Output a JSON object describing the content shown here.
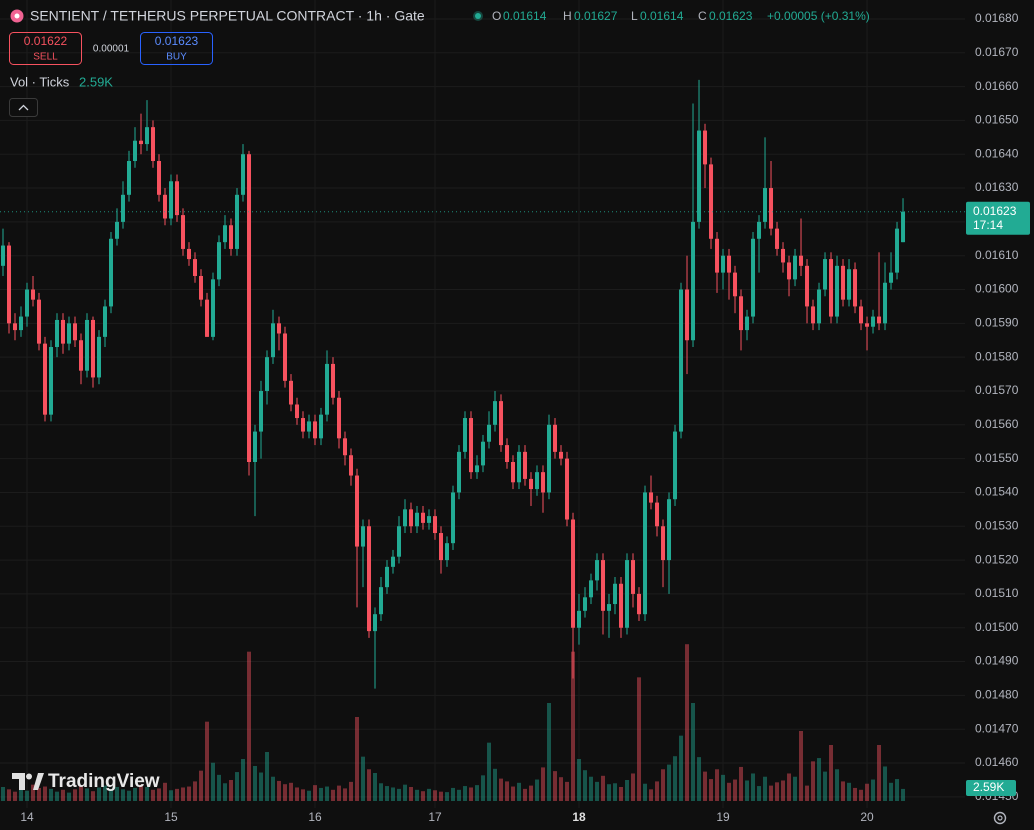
{
  "chart_data": {
    "type": "candlestick",
    "title": "SENTIENT / TETHERUS PERPETUAL CONTRACT · 1h · Gate",
    "ohlc_labels": [
      "O",
      "H",
      "L",
      "C"
    ],
    "change": "+0.00005 (+0.31%)",
    "trade": {
      "sell": 0.01622,
      "sell_label": "SELL",
      "spread": 1e-05,
      "buy": 0.01623,
      "buy_label": "BUY"
    },
    "indicator": "Vol · Ticks",
    "volume_label": "2.59K",
    "countdown": "17:14",
    "brand": "TradingView",
    "up_color": "#22ab94",
    "down_color": "#f7525f",
    "grid": true,
    "last_price_line": true,
    "xlim": [
      -0.5,
      160.33
    ],
    "xticks": [
      {
        "value": 4,
        "label": "14"
      },
      {
        "value": 28,
        "label": "15"
      },
      {
        "value": 52,
        "label": "16"
      },
      {
        "value": 72,
        "label": "17"
      },
      {
        "value": 96,
        "label": "18"
      },
      {
        "value": 120,
        "label": "19"
      },
      {
        "value": 144,
        "label": "20"
      }
    ],
    "ylim": [
      0.014467,
      0.016856
    ],
    "yticks": [
      {
        "value": 0.0145,
        "label": "0.01450"
      },
      {
        "value": 0.0146,
        "label": "0.01460"
      },
      {
        "value": 0.0147,
        "label": "0.01470"
      },
      {
        "value": 0.0148,
        "label": "0.01480"
      },
      {
        "value": 0.0149,
        "label": "0.01490"
      },
      {
        "value": 0.015,
        "label": "0.01500"
      },
      {
        "value": 0.0151,
        "label": "0.01510"
      },
      {
        "value": 0.0152,
        "label": "0.01520"
      },
      {
        "value": 0.0153,
        "label": "0.01530"
      },
      {
        "value": 0.0154,
        "label": "0.01540"
      },
      {
        "value": 0.0155,
        "label": "0.01550"
      },
      {
        "value": 0.0156,
        "label": "0.01560"
      },
      {
        "value": 0.0157,
        "label": "0.01570"
      },
      {
        "value": 0.0158,
        "label": "0.01580"
      },
      {
        "value": 0.0159,
        "label": "0.01590"
      },
      {
        "value": 0.016,
        "label": "0.01600"
      },
      {
        "value": 0.0161,
        "label": "0.01610"
      },
      {
        "value": 0.0162,
        "label": "0.01620"
      },
      {
        "value": 0.0163,
        "label": "0.01630"
      },
      {
        "value": 0.0164,
        "label": "0.01640"
      },
      {
        "value": 0.0165,
        "label": "0.01650"
      },
      {
        "value": 0.0166,
        "label": "0.01660"
      },
      {
        "value": 0.0167,
        "label": "0.01670"
      },
      {
        "value": 0.0168,
        "label": "0.01680"
      }
    ],
    "y2lim": [
      0,
      45000
    ],
    "x": [
      0,
      1,
      2,
      3,
      4,
      5,
      6,
      7,
      8,
      9,
      10,
      11,
      12,
      13,
      14,
      15,
      16,
      17,
      18,
      19,
      20,
      21,
      22,
      23,
      24,
      25,
      26,
      27,
      28,
      29,
      30,
      31,
      32,
      33,
      34,
      35,
      36,
      37,
      38,
      39,
      40,
      41,
      42,
      43,
      44,
      45,
      46,
      47,
      48,
      49,
      50,
      51,
      52,
      53,
      54,
      55,
      56,
      57,
      58,
      59,
      60,
      61,
      62,
      63,
      64,
      65,
      66,
      67,
      68,
      69,
      70,
      71,
      72,
      73,
      74,
      75,
      76,
      77,
      78,
      79,
      80,
      81,
      82,
      83,
      84,
      85,
      86,
      87,
      88,
      89,
      90,
      91,
      92,
      93,
      94,
      95,
      96,
      97,
      98,
      99,
      100,
      101,
      102,
      103,
      104,
      105,
      106,
      107,
      108,
      109,
      110,
      111,
      112,
      113,
      114,
      115,
      116,
      117,
      118,
      119,
      120,
      121,
      122,
      123,
      124,
      125,
      126,
      127,
      128,
      129,
      130,
      131,
      132,
      133,
      134,
      135,
      136,
      137,
      138,
      139,
      140,
      141,
      142,
      143,
      144,
      145,
      146,
      147,
      148,
      149,
      150
    ],
    "open": [
      0.01607,
      0.01613,
      0.0159,
      0.01588,
      0.01592,
      0.016,
      0.01597,
      0.01584,
      0.01563,
      0.01583,
      0.01591,
      0.01584,
      0.0159,
      0.01585,
      0.01576,
      0.01591,
      0.01574,
      0.01586,
      0.01595,
      0.01615,
      0.0162,
      0.01628,
      0.01638,
      0.01644,
      0.01643,
      0.01648,
      0.01638,
      0.01628,
      0.01621,
      0.01632,
      0.01622,
      0.01612,
      0.01609,
      0.01604,
      0.01597,
      0.01586,
      0.01603,
      0.01614,
      0.01619,
      0.01612,
      0.01628,
      0.0164,
      0.01549,
      0.01558,
      0.0157,
      0.0158,
      0.0159,
      0.01587,
      0.01573,
      0.01566,
      0.01562,
      0.01558,
      0.01561,
      0.01556,
      0.01563,
      0.01578,
      0.01568,
      0.01556,
      0.01551,
      0.01545,
      0.01524,
      0.0153,
      0.01499,
      0.01504,
      0.01512,
      0.01518,
      0.01521,
      0.0153,
      0.01535,
      0.0153,
      0.01534,
      0.01531,
      0.01533,
      0.01528,
      0.0152,
      0.01525,
      0.0154,
      0.01552,
      0.01562,
      0.01546,
      0.01548,
      0.01555,
      0.0156,
      0.01567,
      0.01554,
      0.01549,
      0.01543,
      0.01552,
      0.01544,
      0.01541,
      0.01546,
      0.0154,
      0.0156,
      0.01552,
      0.0155,
      0.01532,
      0.015,
      0.01505,
      0.01509,
      0.01514,
      0.0152,
      0.01505,
      0.01507,
      0.01513,
      0.015,
      0.0152,
      0.0151,
      0.01504,
      0.0154,
      0.01537,
      0.0153,
      0.0152,
      0.01538,
      0.01558,
      0.016,
      0.01585,
      0.0162,
      0.01647,
      0.01637,
      0.01615,
      0.01605,
      0.0161,
      0.01605,
      0.01598,
      0.01588,
      0.01592,
      0.01615,
      0.0162,
      0.0163,
      0.01618,
      0.01612,
      0.01608,
      0.01603,
      0.0161,
      0.01607,
      0.01595,
      0.0159,
      0.016,
      0.01609,
      0.01592,
      0.01607,
      0.01597,
      0.01606,
      0.01595,
      0.0159,
      0.01589,
      0.01592,
      0.0159,
      0.01602,
      0.01605,
      0.01614
    ],
    "high": [
      0.01618,
      0.01614,
      0.01593,
      0.01595,
      0.01602,
      0.01604,
      0.01599,
      0.01586,
      0.01585,
      0.01593,
      0.01593,
      0.01592,
      0.01592,
      0.01587,
      0.01593,
      0.01592,
      0.01588,
      0.01597,
      0.01617,
      0.01624,
      0.01632,
      0.01641,
      0.01648,
      0.01652,
      0.01656,
      0.0165,
      0.0164,
      0.0163,
      0.01634,
      0.01634,
      0.01624,
      0.01614,
      0.01611,
      0.01606,
      0.01599,
      0.01605,
      0.01616,
      0.01622,
      0.01621,
      0.0163,
      0.01643,
      0.01641,
      0.0156,
      0.01573,
      0.01582,
      0.01594,
      0.01592,
      0.01589,
      0.01575,
      0.01568,
      0.01564,
      0.01563,
      0.01563,
      0.01565,
      0.01582,
      0.0158,
      0.0157,
      0.01558,
      0.01553,
      0.01547,
      0.01532,
      0.01532,
      0.01506,
      0.01515,
      0.0152,
      0.01523,
      0.01533,
      0.01538,
      0.01537,
      0.01536,
      0.01536,
      0.01535,
      0.01535,
      0.0153,
      0.01527,
      0.01542,
      0.01554,
      0.01564,
      0.01564,
      0.01551,
      0.01557,
      0.01564,
      0.0157,
      0.01569,
      0.01556,
      0.01551,
      0.01554,
      0.01554,
      0.01546,
      0.01548,
      0.01548,
      0.01563,
      0.01562,
      0.01554,
      0.01552,
      0.01534,
      0.0151,
      0.01512,
      0.01516,
      0.01522,
      0.01522,
      0.0151,
      0.01515,
      0.01515,
      0.01522,
      0.01522,
      0.01512,
      0.01542,
      0.01545,
      0.01539,
      0.01532,
      0.0154,
      0.0156,
      0.01602,
      0.0161,
      0.01655,
      0.01662,
      0.01649,
      0.01639,
      0.01617,
      0.01612,
      0.01612,
      0.01607,
      0.016,
      0.01594,
      0.01617,
      0.01622,
      0.01645,
      0.01638,
      0.0162,
      0.01614,
      0.0161,
      0.01612,
      0.01621,
      0.01609,
      0.01597,
      0.01602,
      0.01611,
      0.01611,
      0.0161,
      0.01609,
      0.01609,
      0.01608,
      0.01597,
      0.01592,
      0.01594,
      0.01611,
      0.01608,
      0.01611,
      0.0162,
      0.01627
    ],
    "low": [
      0.01604,
      0.01587,
      0.01585,
      0.01586,
      0.01589,
      0.01595,
      0.01582,
      0.01561,
      0.01561,
      0.0158,
      0.01581,
      0.01582,
      0.01583,
      0.01572,
      0.01574,
      0.01571,
      0.01572,
      0.01583,
      0.01593,
      0.01613,
      0.01618,
      0.01626,
      0.01636,
      0.0164,
      0.01641,
      0.01636,
      0.01626,
      0.01619,
      0.01619,
      0.0162,
      0.0161,
      0.01607,
      0.01602,
      0.01595,
      0.01586,
      0.01585,
      0.01601,
      0.01612,
      0.0161,
      0.0161,
      0.01626,
      0.01545,
      0.01533,
      0.0155,
      0.01566,
      0.01578,
      0.01582,
      0.01571,
      0.01564,
      0.0156,
      0.01556,
      0.01556,
      0.01554,
      0.01554,
      0.01561,
      0.01566,
      0.01553,
      0.01548,
      0.01542,
      0.01506,
      0.01512,
      0.01497,
      0.01482,
      0.01502,
      0.0151,
      0.01516,
      0.01519,
      0.01528,
      0.01528,
      0.01528,
      0.01529,
      0.01529,
      0.01526,
      0.01516,
      0.01518,
      0.01523,
      0.01538,
      0.0155,
      0.01544,
      0.01544,
      0.01546,
      0.01553,
      0.01558,
      0.01552,
      0.01547,
      0.01541,
      0.01541,
      0.01542,
      0.01536,
      0.01539,
      0.01534,
      0.01538,
      0.0155,
      0.01548,
      0.0153,
      0.01485,
      0.01495,
      0.01503,
      0.01507,
      0.01511,
      0.01498,
      0.01497,
      0.01504,
      0.01497,
      0.01498,
      0.01506,
      0.01502,
      0.01502,
      0.01535,
      0.01527,
      0.01512,
      0.0151,
      0.01536,
      0.01556,
      0.01575,
      0.01583,
      0.01618,
      0.0163,
      0.01612,
      0.01599,
      0.016,
      0.01597,
      0.01593,
      0.01582,
      0.01585,
      0.0159,
      0.01605,
      0.01618,
      0.01616,
      0.0161,
      0.01605,
      0.01598,
      0.01601,
      0.01604,
      0.0159,
      0.01588,
      0.01588,
      0.01598,
      0.0159,
      0.0159,
      0.01595,
      0.01595,
      0.01593,
      0.01588,
      0.01582,
      0.01587,
      0.01588,
      0.01588,
      0.016,
      0.01603,
      0.01614
    ],
    "close": [
      0.01613,
      0.0159,
      0.01588,
      0.01592,
      0.016,
      0.01597,
      0.01584,
      0.01563,
      0.01583,
      0.01591,
      0.01584,
      0.0159,
      0.01585,
      0.01576,
      0.01591,
      0.01574,
      0.01586,
      0.01595,
      0.01615,
      0.0162,
      0.01628,
      0.01638,
      0.01644,
      0.01643,
      0.01648,
      0.01638,
      0.01628,
      0.01621,
      0.01632,
      0.01622,
      0.01612,
      0.01609,
      0.01604,
      0.01597,
      0.01586,
      0.01603,
      0.01614,
      0.01619,
      0.01612,
      0.01628,
      0.0164,
      0.01549,
      0.01558,
      0.0157,
      0.0158,
      0.0159,
      0.01587,
      0.01573,
      0.01566,
      0.01562,
      0.01558,
      0.01561,
      0.01556,
      0.01563,
      0.01578,
      0.01568,
      0.01556,
      0.01551,
      0.01545,
      0.01524,
      0.0153,
      0.01499,
      0.01504,
      0.01512,
      0.01518,
      0.01521,
      0.0153,
      0.01535,
      0.0153,
      0.01534,
      0.01531,
      0.01533,
      0.01528,
      0.0152,
      0.01525,
      0.0154,
      0.01552,
      0.01562,
      0.01546,
      0.01548,
      0.01555,
      0.0156,
      0.01567,
      0.01554,
      0.01549,
      0.01543,
      0.01552,
      0.01544,
      0.01541,
      0.01546,
      0.0154,
      0.0156,
      0.01552,
      0.0155,
      0.01532,
      0.015,
      0.01505,
      0.01509,
      0.01514,
      0.0152,
      0.01505,
      0.01507,
      0.01513,
      0.015,
      0.0152,
      0.0151,
      0.01504,
      0.0154,
      0.01537,
      0.0153,
      0.0152,
      0.01538,
      0.01558,
      0.016,
      0.01585,
      0.0162,
      0.01647,
      0.01637,
      0.01615,
      0.01605,
      0.0161,
      0.01605,
      0.01598,
      0.01588,
      0.01592,
      0.01615,
      0.0162,
      0.0163,
      0.01618,
      0.01612,
      0.01608,
      0.01603,
      0.0161,
      0.01607,
      0.01595,
      0.0159,
      0.016,
      0.01609,
      0.01592,
      0.01607,
      0.01597,
      0.01606,
      0.01595,
      0.0159,
      0.01589,
      0.01592,
      0.0159,
      0.01602,
      0.01605,
      0.01618,
      0.01623
    ],
    "volume": [
      3000,
      2500,
      2000,
      4000,
      2200,
      3500,
      2800,
      3100,
      2600,
      2000,
      2400,
      1800,
      2500,
      3200,
      2700,
      2100,
      2900,
      3300,
      2600,
      3000,
      2500,
      2200,
      2800,
      3500,
      3000,
      2400,
      2700,
      3900,
      2300,
      2600,
      2900,
      3100,
      4200,
      6500,
      17000,
      8200,
      5600,
      3800,
      4500,
      6200,
      9000,
      32000,
      7500,
      6100,
      10500,
      5200,
      4300,
      3600,
      3900,
      2900,
      2500,
      2200,
      3400,
      2800,
      3100,
      2400,
      3300,
      2700,
      4100,
      18000,
      9500,
      6800,
      6000,
      3800,
      3200,
      2900,
      2600,
      3500,
      3000,
      2400,
      2100,
      2600,
      2300,
      2000,
      1900,
      2800,
      2400,
      3200,
      2900,
      3400,
      5500,
      12500,
      6900,
      4800,
      4200,
      3100,
      3900,
      2600,
      3300,
      4600,
      7200,
      21000,
      6400,
      5100,
      4100,
      32000,
      9000,
      6600,
      5200,
      4100,
      5400,
      3600,
      3800,
      3000,
      4500,
      5900,
      26500,
      3700,
      2500,
      4200,
      6800,
      7800,
      9600,
      14000,
      33600,
      21000,
      9400,
      6300,
      4700,
      6800,
      5600,
      3900,
      4600,
      7300,
      4400,
      5900,
      3200,
      5200,
      3300,
      4000,
      4400,
      5900,
      5200,
      15000,
      3300,
      8500,
      9200,
      6300,
      12000,
      6800,
      4200,
      3900,
      2800,
      2400,
      3700,
      4600,
      12000,
      7400,
      3900,
      4700,
      2590
    ]
  }
}
